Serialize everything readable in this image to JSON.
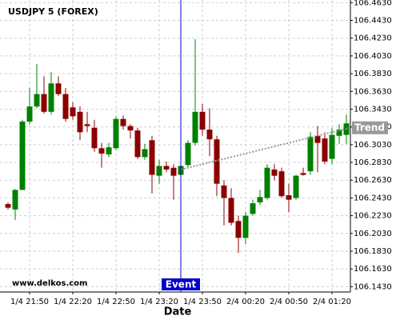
{
  "chart_data": {
    "type": "candlestick",
    "title": "USDJPY 5 (FOREX)",
    "watermark": "www.delkos.com",
    "x_label": "Date",
    "categories": [
      null,
      null,
      null,
      "1/4 21:50",
      null,
      null,
      null,
      null,
      null,
      "1/4 22:20",
      null,
      null,
      null,
      null,
      null,
      "1/4 22:50",
      null,
      null,
      null,
      null,
      null,
      "1/4 23:20",
      null,
      null,
      null,
      null,
      null,
      "1/4 23:50",
      null,
      null,
      null,
      null,
      null,
      "2/4 00:20",
      null,
      null,
      null,
      null,
      null,
      "2/4 00:50",
      null,
      null,
      null,
      null,
      null,
      "2/4 01:20",
      null,
      null
    ],
    "open": [
      106.236,
      106.23,
      106.252,
      106.329,
      106.346,
      106.36,
      106.34,
      106.372,
      106.36,
      106.345,
      106.34,
      106.326,
      106.322,
      106.299,
      106.292,
      106.299,
      106.332,
      106.324,
      106.319,
      106.289,
      106.308,
      106.268,
      106.279,
      106.277,
      106.269,
      106.28,
      106.305,
      106.34,
      106.32,
      106.309,
      106.257,
      106.243,
      106.217,
      106.198,
      106.225,
      106.238,
      106.243,
      106.275,
      106.273,
      106.246,
      106.243,
      106.271,
      106.273,
      106.313,
      106.31,
      106.287,
      106.313,
      106.314
    ],
    "high": [
      106.238,
      106.253,
      106.331,
      106.367,
      106.394,
      106.38,
      106.385,
      106.38,
      106.367,
      106.351,
      106.346,
      106.34,
      106.331,
      106.305,
      106.305,
      106.335,
      106.336,
      106.326,
      106.322,
      106.304,
      106.313,
      106.286,
      106.284,
      106.281,
      106.281,
      106.308,
      106.422,
      106.349,
      106.344,
      106.313,
      106.263,
      106.254,
      106.223,
      106.227,
      106.241,
      106.252,
      106.281,
      106.281,
      106.277,
      106.259,
      106.269,
      106.277,
      106.317,
      106.324,
      106.317,
      106.322,
      106.326,
      106.337
    ],
    "low": [
      106.23,
      106.218,
      106.252,
      106.326,
      106.344,
      106.338,
      106.337,
      106.358,
      106.329,
      106.331,
      106.308,
      106.317,
      106.295,
      106.277,
      106.289,
      106.297,
      106.32,
      106.31,
      106.287,
      106.286,
      106.248,
      106.259,
      106.272,
      106.241,
      106.268,
      106.277,
      106.302,
      106.313,
      106.29,
      106.245,
      106.212,
      106.212,
      106.181,
      106.191,
      106.223,
      106.235,
      106.241,
      106.263,
      106.243,
      106.227,
      106.241,
      106.268,
      106.269,
      106.272,
      106.281,
      106.281,
      106.304,
      106.304
    ],
    "close": [
      106.232,
      106.252,
      106.329,
      106.346,
      106.36,
      106.34,
      106.372,
      106.36,
      106.332,
      106.335,
      106.317,
      106.324,
      106.299,
      106.293,
      106.3,
      106.332,
      106.324,
      106.319,
      106.289,
      106.298,
      106.269,
      106.279,
      106.275,
      106.268,
      106.279,
      106.305,
      106.34,
      106.32,
      106.309,
      106.259,
      106.243,
      106.215,
      106.198,
      106.223,
      106.237,
      106.244,
      106.277,
      106.268,
      106.245,
      106.241,
      106.268,
      106.269,
      106.312,
      106.305,
      106.284,
      106.314,
      106.32,
      106.327
    ],
    "up_color": "#008000",
    "down_color": "#8b0000",
    "ylim": [
      106.137,
      106.466
    ],
    "yticks": [
      {
        "value": 106.463,
        "label": "106.4630"
      },
      {
        "value": 106.443,
        "label": "106.4430"
      },
      {
        "value": 106.423,
        "label": "106.4230"
      },
      {
        "value": 106.403,
        "label": "106.4030"
      },
      {
        "value": 106.383,
        "label": "106.3830"
      },
      {
        "value": 106.363,
        "label": "106.3630"
      },
      {
        "value": 106.343,
        "label": "106.3430"
      },
      {
        "value": 106.323,
        "label": "106.3230"
      },
      {
        "value": 106.303,
        "label": "106.3030"
      },
      {
        "value": 106.283,
        "label": "106.2830"
      },
      {
        "value": 106.263,
        "label": "106.2630"
      },
      {
        "value": 106.243,
        "label": "106.2430"
      },
      {
        "value": 106.223,
        "label": "106.2230"
      },
      {
        "value": 106.203,
        "label": "106.2030"
      },
      {
        "value": 106.183,
        "label": "106.1830"
      },
      {
        "value": 106.163,
        "label": "106.1630"
      },
      {
        "value": 106.143,
        "label": "106.1430"
      }
    ],
    "grid": true,
    "event": {
      "label": "Event",
      "index": 24,
      "color": "#0000cc"
    },
    "trend": {
      "label": "Trend",
      "indices": [
        24,
        47.5
      ],
      "values": [
        106.275,
        106.322
      ],
      "color": "#999999"
    }
  }
}
